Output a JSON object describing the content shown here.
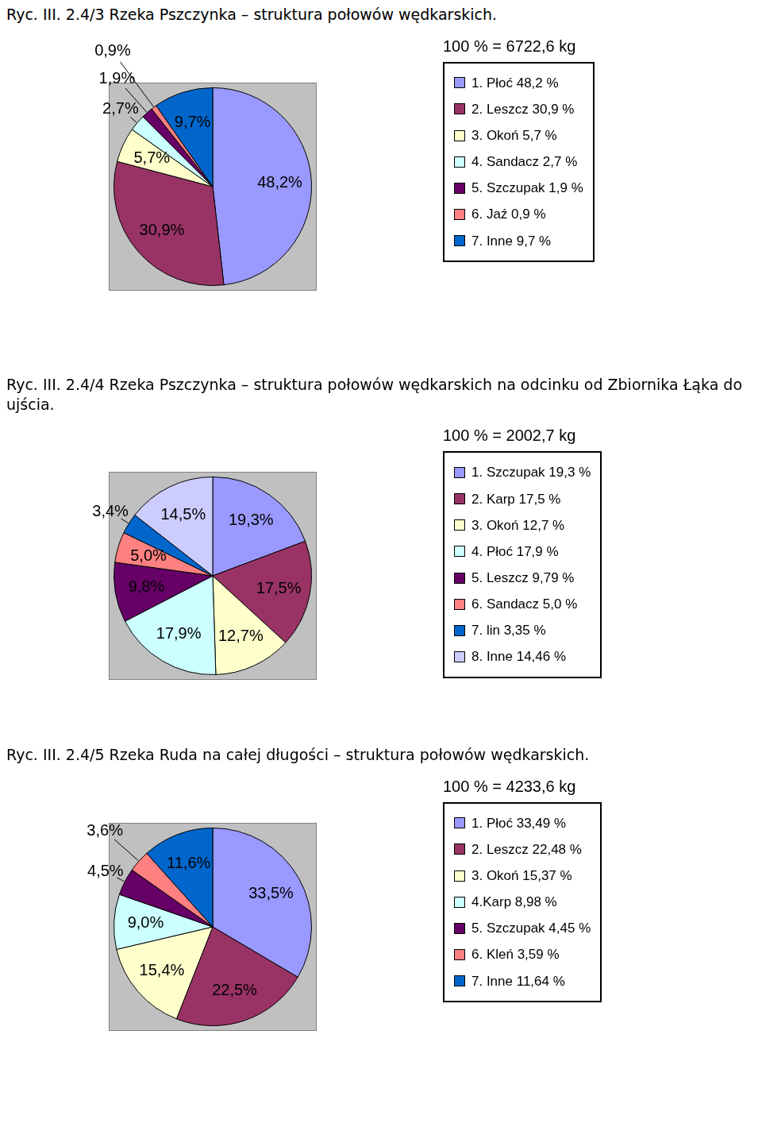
{
  "chart_data": [
    {
      "type": "pie",
      "title": "Ryc. III. 2.4/3 Rzeka Pszczynka – struktura połowów wędkarskich.",
      "subtitle": "100 % = 6722,6 kg",
      "categories": [
        "1. Płoć 48,2 %",
        "2. Leszcz 30,9 %",
        "3. Okoń 5,7 %",
        "4. Sandacz 2,7 %",
        "5. Szczupak 1,9 %",
        "6. Jaź 0,9 %",
        "7. Inne  9,7 %"
      ],
      "values": [
        48.2,
        30.9,
        5.7,
        2.7,
        1.9,
        0.9,
        9.7
      ],
      "value_labels": [
        "48,2%",
        "30,9%",
        "5,7%",
        "2,7%",
        "1,9%",
        "0,9%",
        "9,7%"
      ],
      "colors": [
        "#9999ff",
        "#993366",
        "#ffffcc",
        "#ccffff",
        "#660066",
        "#ff8080",
        "#0066cc"
      ],
      "legend": "right",
      "data_labels": true
    },
    {
      "type": "pie",
      "title": "Ryc. III. 2.4/4 Rzeka Pszczynka – struktura połowów wędkarskich na odcinku od Zbiornika Łąka do ujścia.",
      "subtitle": "100 % = 2002,7 kg",
      "categories": [
        "1. Szczupak 19,3 %",
        "2. Karp 17,5 %",
        "3. Okoń 12,7 %",
        "4. Płoć 17,9 %",
        "5. Leszcz 9,79 %",
        "6. Sandacz 5,0 %",
        "7. lin 3,35 %",
        "8. Inne 14,46 %"
      ],
      "values": [
        19.3,
        17.5,
        12.7,
        17.9,
        9.79,
        5.0,
        3.35,
        14.46
      ],
      "value_labels": [
        "19,3%",
        "17,5%",
        "12,7%",
        "17,9%",
        "9,8%",
        "5,0%",
        "3,4%",
        "14,5%"
      ],
      "colors": [
        "#9999ff",
        "#993366",
        "#ffffcc",
        "#ccffff",
        "#660066",
        "#ff8080",
        "#0066cc",
        "#ccccff"
      ],
      "legend": "right",
      "data_labels": true
    },
    {
      "type": "pie",
      "title": "Ryc. III. 2.4/5 Rzeka Ruda na całej długości – struktura połowów wędkarskich.",
      "subtitle": "100 % = 4233,6 kg",
      "categories": [
        "1. Płoć 33,49 %",
        "2. Leszcz 22,48 %",
        "3. Okoń 15,37 %",
        "4.Karp 8,98 %",
        "5. Szczupak 4,45 %",
        "6. Kleń 3,59 %",
        "7. Inne 11,64 %"
      ],
      "values": [
        33.49,
        22.48,
        15.37,
        8.98,
        4.45,
        3.59,
        11.64
      ],
      "value_labels": [
        "33,5%",
        "22,5%",
        "15,4%",
        "9,0%",
        "4,5%",
        "3,6%",
        "11,6%"
      ],
      "colors": [
        "#9999ff",
        "#993366",
        "#ffffcc",
        "#ccffff",
        "#660066",
        "#ff8080",
        "#0066cc"
      ],
      "legend": "right",
      "data_labels": true
    }
  ]
}
